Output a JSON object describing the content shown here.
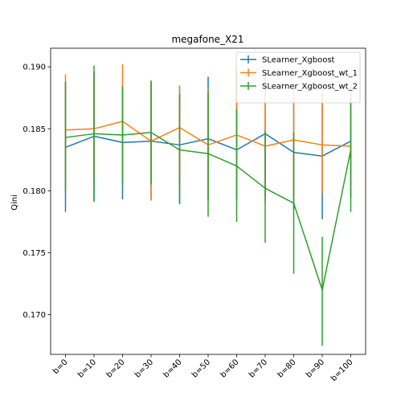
{
  "chart_data": {
    "type": "line",
    "title": "megafone_X21",
    "xlabel": "",
    "ylabel": "Qini",
    "categories": [
      "b=0",
      "b=10",
      "b=20",
      "b=30",
      "b=40",
      "b=50",
      "b=60",
      "b=70",
      "b=80",
      "b=90",
      "b=100"
    ],
    "ylim": [
      0.1668,
      0.1915
    ],
    "yticks": [
      "0.170",
      "0.175",
      "0.180",
      "0.185",
      "0.190"
    ],
    "ytick_values": [
      0.17,
      0.175,
      0.18,
      0.185,
      0.19
    ],
    "grid": false,
    "legend_position": "top-right",
    "series": [
      {
        "name": "SLearner_Xgboost",
        "color": "#1f77b4",
        "values": [
          0.1835,
          0.1844,
          0.1839,
          0.184,
          0.1837,
          0.1842,
          0.1833,
          0.1846,
          0.1831,
          0.1828,
          0.184
        ],
        "err_low": [
          0.1783,
          0.1792,
          0.1793,
          0.1793,
          0.179,
          0.1792,
          0.1792,
          0.1795,
          0.1785,
          0.1777,
          0.1795
        ],
        "err_high": [
          0.1887,
          0.1896,
          0.1885,
          0.1887,
          0.1884,
          0.1892,
          0.1874,
          0.1897,
          0.1877,
          0.1879,
          0.1885
        ]
      },
      {
        "name": "SLearner_Xgboost_wt_1",
        "color": "#ff7f0e",
        "values": [
          0.1849,
          0.185,
          0.1856,
          0.184,
          0.1851,
          0.1837,
          0.1845,
          0.1836,
          0.1841,
          0.1837,
          0.1836
        ],
        "err_low": [
          0.1804,
          0.1805,
          0.181,
          0.1792,
          0.1806,
          0.1792,
          0.1795,
          0.179,
          0.1795,
          0.1798,
          0.1795
        ],
        "err_high": [
          0.1894,
          0.1895,
          0.1902,
          0.1888,
          0.1885,
          0.1882,
          0.1897,
          0.1882,
          0.1887,
          0.1876,
          0.1878
        ]
      },
      {
        "name": "SLearner_Xgboost_wt_2",
        "color": "#2ca02c",
        "values": [
          0.1843,
          0.1846,
          0.1845,
          0.1847,
          0.1833,
          0.183,
          0.182,
          0.1802,
          0.179,
          0.172,
          0.1833
        ],
        "err_low": [
          0.1798,
          0.1791,
          0.1805,
          0.1805,
          0.1789,
          0.1779,
          0.1775,
          0.1758,
          0.1733,
          0.1675,
          0.1783
        ],
        "err_high": [
          0.1888,
          0.1901,
          0.1884,
          0.1889,
          0.1878,
          0.188,
          0.1866,
          0.1848,
          0.1847,
          0.1763,
          0.1883
        ]
      }
    ]
  }
}
